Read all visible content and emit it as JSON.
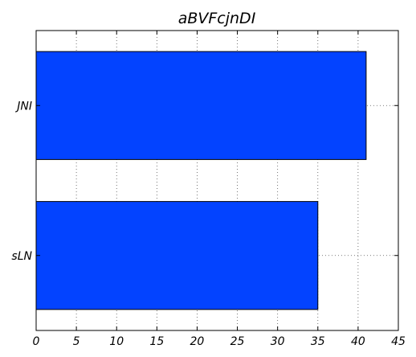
{
  "chart_data": {
    "type": "bar",
    "orientation": "horizontal",
    "title": "aBVFcjnDI",
    "categories": [
      "JNI",
      "sLN"
    ],
    "values": [
      41,
      35
    ],
    "xlim": [
      0,
      45
    ],
    "xticks": [
      0,
      5,
      10,
      15,
      20,
      25,
      30,
      35,
      40,
      45
    ],
    "xlabel": "",
    "ylabel": "",
    "grid": true,
    "bar_color": "#0343ff"
  }
}
